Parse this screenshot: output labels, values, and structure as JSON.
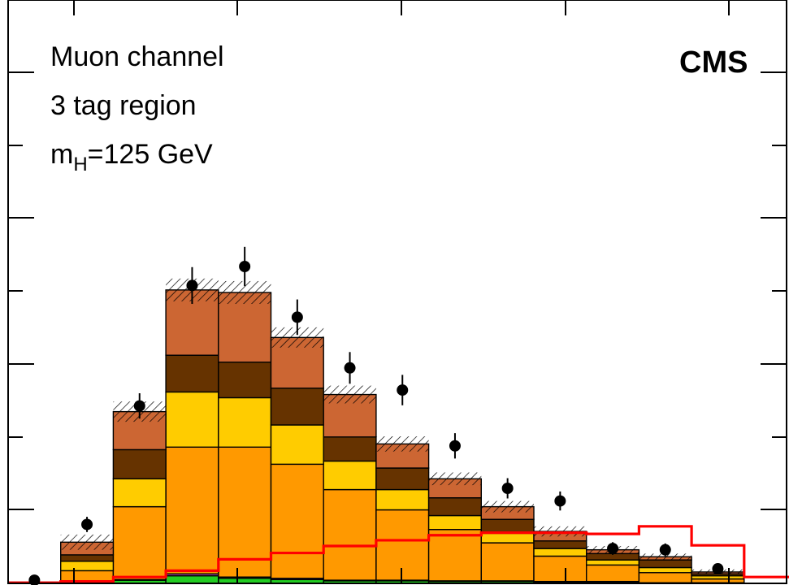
{
  "annotations": {
    "channel": "Muon channel",
    "region": "3 tag region",
    "mass_main": "m",
    "mass_sub": "H",
    "mass_value": "=125 GeV",
    "experiment": "CMS"
  },
  "colors": {
    "green": "#22cc22",
    "purple": "#aa44aa",
    "orange": "#ff9900",
    "yellow": "#ffcc00",
    "dark_brown": "#663300",
    "copper": "#cc6633",
    "signal": "#ff0000",
    "data": "#000000"
  },
  "chart_data": {
    "type": "bar",
    "stacked": true,
    "bins": 15,
    "ylim": [
      0,
      680
    ],
    "series": [
      {
        "color": "#22cc22",
        "values": [
          0,
          0,
          5,
          12,
          8,
          6,
          4,
          4,
          3,
          3,
          2,
          2,
          1,
          1,
          0
        ]
      },
      {
        "color": "#aa44aa",
        "values": [
          0,
          0,
          1,
          3,
          2,
          2,
          1,
          1,
          1,
          1,
          1,
          1,
          0,
          0,
          0
        ]
      },
      {
        "color": "#ff9900",
        "values": [
          1,
          20,
          115,
          200,
          205,
          180,
          143,
          111,
          81,
          60,
          40,
          26,
          16,
          6,
          0
        ]
      },
      {
        "color": "#ffcc00",
        "values": [
          0,
          15,
          44,
          87,
          78,
          62,
          45,
          32,
          22,
          15,
          12,
          8,
          8,
          5,
          0
        ]
      },
      {
        "color": "#663300",
        "values": [
          0,
          10,
          46,
          58,
          56,
          58,
          38,
          34,
          28,
          22,
          12,
          10,
          12,
          3,
          0
        ]
      },
      {
        "color": "#cc6633",
        "values": [
          1,
          20,
          60,
          103,
          110,
          80,
          67,
          38,
          30,
          20,
          15,
          6,
          5,
          3,
          0
        ]
      }
    ],
    "uncertainty": [
      0,
      12,
      16,
      18,
      18,
      16,
      14,
      12,
      10,
      9,
      8,
      6,
      5,
      4,
      1
    ],
    "data_points": [
      {
        "bin": 0,
        "value": 5,
        "err": 4
      },
      {
        "bin": 1,
        "value": 93,
        "err": 12
      },
      {
        "bin": 2,
        "value": 280,
        "err": 20
      },
      {
        "bin": 3,
        "value": 470,
        "err": 29
      },
      {
        "bin": 4,
        "value": 500,
        "err": 31
      },
      {
        "bin": 5,
        "value": 420,
        "err": 28
      },
      {
        "bin": 6,
        "value": 340,
        "err": 25
      },
      {
        "bin": 7,
        "value": 305,
        "err": 24
      },
      {
        "bin": 8,
        "value": 217,
        "err": 20
      },
      {
        "bin": 9,
        "value": 150,
        "err": 16
      },
      {
        "bin": 10,
        "value": 130,
        "err": 15
      },
      {
        "bin": 11,
        "value": 55,
        "err": 10
      },
      {
        "bin": 12,
        "value": 53,
        "err": 10
      },
      {
        "bin": 13,
        "value": 23,
        "err": 6
      },
      {
        "bin": 14,
        "value": 0,
        "err": 1
      }
    ],
    "signal": {
      "color": "#ff0000",
      "values": [
        1,
        3,
        10,
        20,
        38,
        48,
        59,
        68,
        76,
        80,
        80,
        78,
        90,
        60,
        10
      ]
    }
  }
}
